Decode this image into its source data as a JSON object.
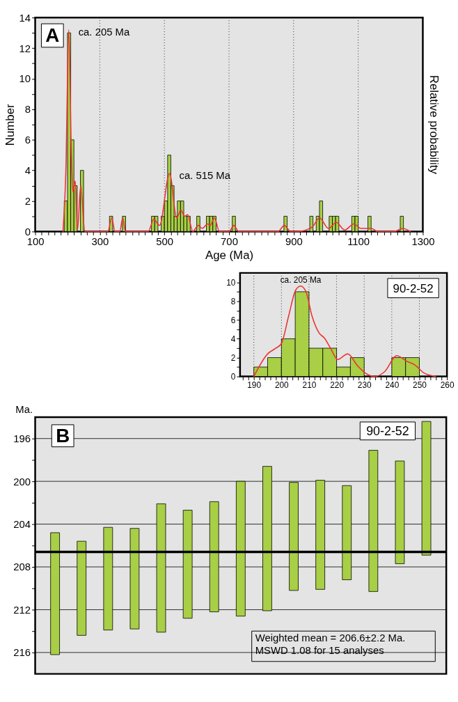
{
  "chart_data": [
    {
      "type": "histogram",
      "color": "#a8cf45",
      "bins": [
        190,
        200,
        210,
        220,
        230,
        240,
        250,
        260,
        270,
        280,
        290,
        300,
        310,
        320,
        330,
        340,
        350,
        360,
        370,
        380,
        390,
        400,
        410,
        420,
        430,
        440,
        450,
        460,
        470,
        480,
        490,
        500,
        510,
        520,
        530,
        540,
        550,
        560,
        570,
        580,
        590,
        600,
        610,
        620,
        630,
        640,
        650,
        660,
        670,
        680,
        690,
        700,
        710,
        720,
        730,
        740,
        750,
        760,
        770,
        780,
        790,
        800,
        810,
        820,
        830,
        840,
        850,
        860,
        870,
        880,
        890,
        900,
        910,
        920,
        930,
        940,
        950,
        960,
        970,
        980,
        990,
        1000,
        1010,
        1020,
        1030,
        1040,
        1050,
        1060,
        1070,
        1080,
        1090,
        1100,
        1110,
        1120,
        1130,
        1140,
        1150,
        1160,
        1170,
        1180,
        1190,
        1200,
        1210,
        1220,
        1230,
        1240
      ],
      "values": [
        2,
        13,
        6,
        3,
        0,
        4,
        0,
        0,
        0,
        0,
        0,
        0,
        0,
        0,
        1,
        0,
        0,
        0,
        1,
        0,
        0,
        0,
        0,
        0,
        0,
        0,
        0,
        1,
        1,
        0,
        1,
        2,
        5,
        3,
        1,
        2,
        2,
        1,
        1,
        0,
        0,
        1,
        0,
        0,
        1,
        1,
        1,
        0,
        0,
        0,
        0,
        0,
        1,
        0,
        0,
        0,
        0,
        0,
        0,
        0,
        0,
        0,
        0,
        0,
        0,
        0,
        0,
        0,
        1,
        0,
        0,
        0,
        0,
        0,
        0,
        0,
        1,
        0,
        1,
        2,
        0,
        0,
        1,
        1,
        1,
        0,
        0,
        0,
        0,
        1,
        1,
        0,
        0,
        0,
        1,
        0,
        0,
        0,
        0,
        0,
        0,
        0,
        0,
        0,
        1
      ],
      "series": [
        {
          "type": "line",
          "color": "#ee3333",
          "x": [
            186,
            195,
            204,
            212,
            217,
            224,
            231,
            241,
            254,
            325,
            337,
            347,
            362,
            371,
            380,
            450,
            467,
            485,
            516,
            538,
            551,
            563,
            572,
            588,
            605,
            617,
            634,
            642,
            655,
            670,
            700,
            715,
            730,
            852,
            871,
            891,
            912,
            958,
            980,
            1008,
            1032,
            1058,
            1087,
            1108,
            1140,
            1161,
            1211,
            1238,
            1261
          ],
          "values": [
            0,
            4,
            13.2,
            5,
            2.6,
            3.3,
            0.1,
            3.0,
            0,
            0,
            0.9,
            0,
            0,
            0.9,
            0,
            0,
            0.8,
            0.4,
            3.8,
            0.9,
            1.4,
            1.0,
            1.1,
            0,
            0.4,
            0.2,
            0.5,
            0.4,
            0.9,
            0,
            0,
            0.4,
            0,
            0,
            0.4,
            0,
            0,
            0.3,
            0.9,
            0.2,
            0.6,
            0.1,
            0.5,
            0.2,
            0.2,
            0,
            0,
            0.2,
            0
          ]
        }
      ],
      "xlim": [
        100,
        1300
      ],
      "ylim": [
        0,
        14
      ],
      "xticks": [
        100,
        {
          "value": 120,
          "label": null
        },
        {
          "value": 140,
          "label": null
        },
        {
          "value": 160,
          "label": null
        },
        {
          "value": 180,
          "label": null
        },
        {
          "value": 200,
          "label": null
        },
        {
          "value": 220,
          "label": null
        },
        {
          "value": 240,
          "label": null
        },
        {
          "value": 260,
          "label": null
        },
        {
          "value": 280,
          "label": null
        },
        300,
        {
          "value": 320,
          "label": null
        },
        {
          "value": 340,
          "label": null
        },
        {
          "value": 360,
          "label": null
        },
        {
          "value": 380,
          "label": null
        },
        {
          "value": 400,
          "label": null
        },
        {
          "value": 420,
          "label": null
        },
        {
          "value": 440,
          "label": null
        },
        {
          "value": 460,
          "label": null
        },
        {
          "value": 480,
          "label": null
        },
        500,
        {
          "value": 520,
          "label": null
        },
        {
          "value": 540,
          "label": null
        },
        {
          "value": 560,
          "label": null
        },
        {
          "value": 580,
          "label": null
        },
        {
          "value": 600,
          "label": null
        },
        {
          "value": 620,
          "label": null
        },
        {
          "value": 640,
          "label": null
        },
        {
          "value": 660,
          "label": null
        },
        {
          "value": 680,
          "label": null
        },
        700,
        {
          "value": 720,
          "label": null
        },
        {
          "value": 740,
          "label": null
        },
        {
          "value": 760,
          "label": null
        },
        {
          "value": 780,
          "label": null
        },
        {
          "value": 800,
          "label": null
        },
        {
          "value": 820,
          "label": null
        },
        {
          "value": 840,
          "label": null
        },
        {
          "value": 860,
          "label": null
        },
        {
          "value": 880,
          "label": null
        },
        900,
        {
          "value": 920,
          "label": null
        },
        {
          "value": 940,
          "label": null
        },
        {
          "value": 960,
          "label": null
        },
        {
          "value": 980,
          "label": null
        },
        {
          "value": 1000,
          "label": null
        },
        {
          "value": 1020,
          "label": null
        },
        {
          "value": 1040,
          "label": null
        },
        {
          "value": 1060,
          "label": null
        },
        {
          "value": 1080,
          "label": null
        },
        1100,
        {
          "value": 1120,
          "label": null
        },
        {
          "value": 1140,
          "label": null
        },
        {
          "value": 1160,
          "label": null
        },
        {
          "value": 1180,
          "label": null
        },
        {
          "value": 1200,
          "label": null
        },
        {
          "value": 1220,
          "label": null
        },
        {
          "value": 1240,
          "label": null
        },
        {
          "value": 1260,
          "label": null
        },
        {
          "value": 1280,
          "label": null
        },
        1300
      ],
      "yticks": [
        0,
        {
          "value": 1,
          "label": null
        },
        2,
        {
          "value": 3,
          "label": null
        },
        4,
        {
          "value": 5,
          "label": null
        },
        6,
        {
          "value": 7,
          "label": null
        },
        8,
        {
          "value": 9,
          "label": null
        },
        10,
        {
          "value": 11,
          "label": null
        },
        12,
        {
          "value": 13,
          "label": null
        },
        14
      ],
      "xlabel": "Age (Ma)",
      "ylabel": "Number",
      "y2label": "Relative probability",
      "grid": "x",
      "annotations": [
        {
          "text": "ca. 205 Ma",
          "x": 204,
          "y": 13.2
        },
        {
          "text": "ca. 515 Ma",
          "x": 516,
          "y": 3.8
        },
        "A"
      ]
    },
    {
      "type": "histogram",
      "color": "#a8cf45",
      "bins": [
        190,
        195,
        200,
        205,
        210,
        215,
        220,
        225,
        230,
        235,
        240,
        245,
        250
      ],
      "values": [
        1,
        2,
        4,
        9,
        3,
        3,
        1,
        2,
        0,
        0,
        2,
        2
      ],
      "series": [
        {
          "type": "line",
          "color": "#ee3333",
          "x": [
            190,
            195,
            198,
            200,
            202.6,
            205.2,
            207,
            208.9,
            211.1,
            213.7,
            215.5,
            217.8,
            220.4,
            224,
            227.7,
            230.7,
            234,
            237.4,
            241.8,
            245.5,
            248.5,
            251.5,
            255.9
          ],
          "values": [
            0,
            2.4,
            3.0,
            3.5,
            6.4,
            9.2,
            9.6,
            9.0,
            6.4,
            4.6,
            4.1,
            3.0,
            1.8,
            2.4,
            1.1,
            0.3,
            0,
            0.5,
            2.2,
            1.6,
            1.2,
            0.4,
            0
          ]
        }
      ],
      "xlim": [
        185,
        260
      ],
      "ylim": [
        0,
        11
      ],
      "xticks": [
        {
          "value": 186,
          "label": null
        },
        {
          "value": 188,
          "label": null
        },
        190,
        {
          "value": 192,
          "label": null
        },
        {
          "value": 194,
          "label": null
        },
        {
          "value": 196,
          "label": null
        },
        {
          "value": 198,
          "label": null
        },
        200,
        {
          "value": 202,
          "label": null
        },
        {
          "value": 204,
          "label": null
        },
        {
          "value": 206,
          "label": null
        },
        {
          "value": 208,
          "label": null
        },
        210,
        {
          "value": 212,
          "label": null
        },
        {
          "value": 214,
          "label": null
        },
        {
          "value": 216,
          "label": null
        },
        {
          "value": 218,
          "label": null
        },
        220,
        {
          "value": 222,
          "label": null
        },
        {
          "value": 224,
          "label": null
        },
        {
          "value": 226,
          "label": null
        },
        {
          "value": 228,
          "label": null
        },
        230,
        {
          "value": 232,
          "label": null
        },
        {
          "value": 234,
          "label": null
        },
        {
          "value": 236,
          "label": null
        },
        {
          "value": 238,
          "label": null
        },
        240,
        {
          "value": 242,
          "label": null
        },
        {
          "value": 244,
          "label": null
        },
        {
          "value": 246,
          "label": null
        },
        {
          "value": 248,
          "label": null
        },
        250,
        {
          "value": 252,
          "label": null
        },
        {
          "value": 254,
          "label": null
        },
        {
          "value": 256,
          "label": null
        },
        {
          "value": 258,
          "label": null
        },
        260
      ],
      "yticks": [
        0,
        {
          "value": 1,
          "label": null
        },
        2,
        {
          "value": 3,
          "label": null
        },
        4,
        {
          "value": 5,
          "label": null
        },
        6,
        {
          "value": 7,
          "label": null
        },
        8,
        {
          "value": 9,
          "label": null
        },
        10
      ],
      "grid": "x",
      "annotations": [
        {
          "text": "ca. 205 Ma",
          "x": 207,
          "y": 9.6
        },
        "90-2-52"
      ]
    },
    {
      "type": "bar",
      "color": "#a8cf45",
      "categories": [
        null,
        null,
        null,
        null,
        null,
        null,
        null,
        null,
        null,
        null,
        null,
        null,
        null,
        null,
        null
      ],
      "base": [
        204.8,
        205.6,
        204.3,
        204.4,
        202.1,
        202.7,
        201.9,
        200.0,
        198.6,
        200.1,
        199.9,
        200.4,
        197.1,
        198.1,
        194.4
      ],
      "values": [
        11.4,
        8.8,
        9.6,
        9.4,
        12.0,
        10.1,
        10.3,
        12.6,
        13.5,
        10.1,
        10.2,
        8.8,
        13.2,
        9.6,
        12.5
      ],
      "ylim": [
        218,
        194
      ],
      "yticks": [
        196,
        {
          "value": 198,
          "label": null
        },
        200,
        {
          "value": 202,
          "label": null
        },
        204,
        {
          "value": 206,
          "label": null
        },
        208,
        {
          "value": 210,
          "label": null
        },
        212,
        {
          "value": 214,
          "label": null
        },
        216
      ],
      "ylabel": "Ma.",
      "grid": "y",
      "tick_labels": "y",
      "ref_lines": [
        {
          "axis": "y",
          "value": 206.6,
          "color": "#000000"
        }
      ],
      "annotations": [
        "B",
        "90-2-52",
        "Weighted mean = 206.6±2.2 Ma.\nMSWD 1.08 for 15 analyses"
      ]
    }
  ]
}
